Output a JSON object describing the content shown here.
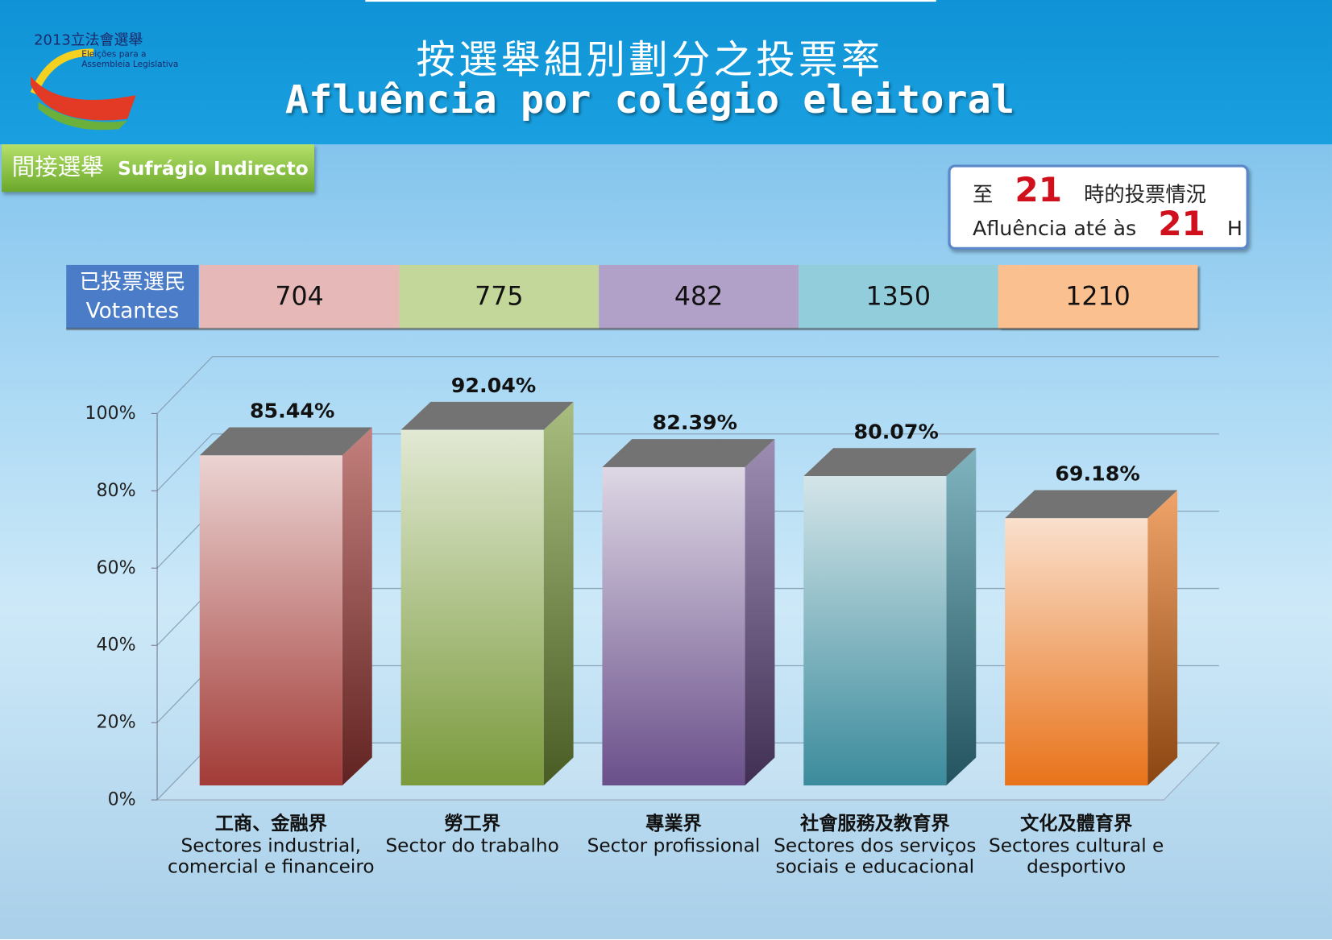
{
  "header": {
    "logo_title": "2013立法會選舉",
    "logo_subtitle_line1": "Eleições para a",
    "logo_subtitle_line2": "Assembleia Legislativa",
    "title_zh": "按選舉組別劃分之投票率",
    "title_pt": "Afluência por colégio eleitoral"
  },
  "section": {
    "zh": "間接選舉",
    "pt": "Sufrágio Indirecto"
  },
  "time_box": {
    "zh_prefix": "至",
    "hour_zh": "21",
    "zh_suffix": "時的投票情況",
    "pt_prefix": "Afluência até às",
    "hour_pt": "21",
    "pt_suffix": "H"
  },
  "voters": {
    "label_zh": "已投票選民",
    "label_pt": "Votantes",
    "values": [
      704,
      775,
      482,
      1350,
      1210
    ],
    "colors": [
      "#e6b9b8",
      "#c4d79b",
      "#b1a0c7",
      "#92cddc",
      "#fac090"
    ]
  },
  "chart_data": {
    "type": "bar",
    "categories": [
      "工商、金融界",
      "勞工界",
      "專業界",
      "社會服務及教育界",
      "文化及體育界"
    ],
    "category_descriptions": [
      "Sectores industrial, comercial e financeiro",
      "Sector do trabalho",
      "Sector profissional",
      "Sectores dos serviços sociais e educacional",
      "Sectores cultural e desportivo"
    ],
    "values": [
      85.44,
      92.04,
      82.39,
      80.07,
      69.18
    ],
    "value_labels": [
      "85.44%",
      "92.04%",
      "82.39%",
      "80.07%",
      "69.18%"
    ],
    "colors": [
      "#a23b37",
      "#7a9a3c",
      "#6a4f8a",
      "#3b8b9c",
      "#e8731a"
    ],
    "ylim": [
      0,
      100
    ],
    "yticks": [
      {
        "value": 0,
        "label": "0%"
      },
      {
        "value": 20,
        "label": "20%"
      },
      {
        "value": 40,
        "label": "40%"
      },
      {
        "value": 60,
        "label": "60%"
      },
      {
        "value": 80,
        "label": "80%"
      },
      {
        "value": 100,
        "label": "100%"
      }
    ],
    "grid": true
  }
}
